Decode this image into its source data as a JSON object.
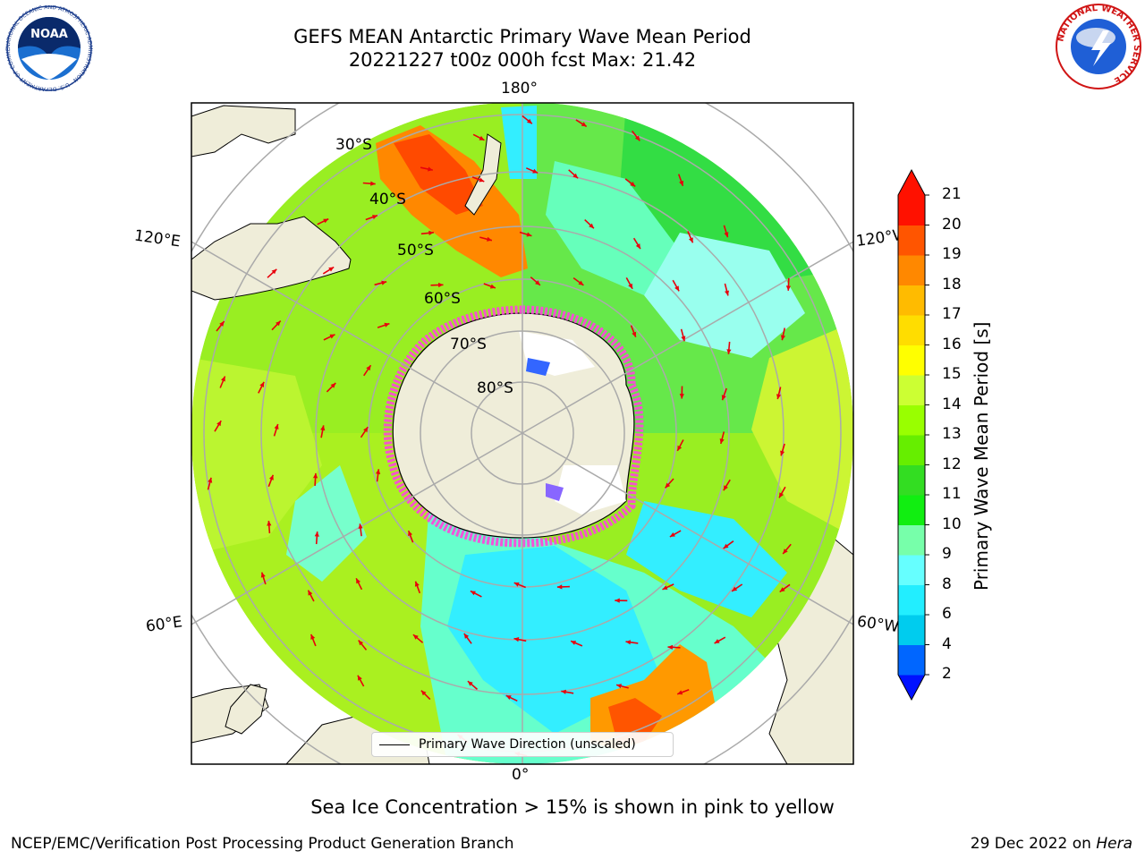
{
  "title": {
    "line1": "GEFS MEAN Antarctic Primary Wave Mean Period",
    "line2": "20221227 t00z 000h fcst   Max: 21.42"
  },
  "map": {
    "longitude_labels": {
      "top": "180°",
      "bottom": "0°",
      "left_upper": "120°E",
      "left_lower": "60°E",
      "right_upper": "120°W",
      "right_lower": "60°W"
    },
    "latitude_labels": [
      "30°S",
      "40°S",
      "50°S",
      "60°S",
      "70°S",
      "80°S"
    ],
    "legend_label": "Primary Wave Direction (unscaled)",
    "colors": {
      "land": "#efedd9",
      "ice_edge": "#ff44dd",
      "arrows": "#e8000b"
    }
  },
  "colorbar": {
    "label": "Primary Wave Mean Period [s]",
    "ticks": [
      "2",
      "4",
      "6",
      "8",
      "9",
      "10",
      "11",
      "12",
      "13",
      "14",
      "15",
      "16",
      "17",
      "18",
      "19",
      "20",
      "21"
    ],
    "colors": [
      "#0011ff",
      "#0066ff",
      "#00ccee",
      "#22eeff",
      "#66ffff",
      "#77ffaa",
      "#11ee11",
      "#33dd22",
      "#66ee00",
      "#99ff00",
      "#ccff33",
      "#ffff00",
      "#ffdd00",
      "#ffbb00",
      "#ff8800",
      "#ff5500",
      "#ff1100"
    ]
  },
  "caption": "Sea Ice Concentration > 15% is shown in pink to yellow",
  "footer": {
    "left": "NCEP/EMC/Verification Post Processing Product Generation Branch",
    "right_date": "29 Dec 2022 on ",
    "right_host": "Hera"
  },
  "logos": {
    "noaa": {
      "text": "NOAA",
      "ring_text": "NATIONAL OCEANIC AND ATMOSPHERIC ADMINISTRATION · U.S. DEPARTMENT OF COMMERCE"
    },
    "nws": {
      "ring_text": "NATIONAL WEATHER SERVICE"
    }
  }
}
